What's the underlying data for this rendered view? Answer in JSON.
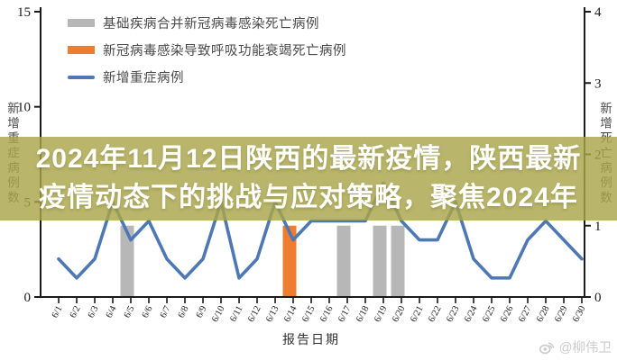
{
  "overlay": {
    "line1": "2024年11月12日陕西的最新疫情，陕西最新",
    "line2": "疫情动态下的挑战与应对策略，聚焦2024年",
    "background_color": "#aaa64c",
    "text_color": "#ffffff"
  },
  "watermark": {
    "icon": "weibo-eye-icon",
    "text": "@柳伟卫"
  },
  "chart_data": {
    "type": "combo",
    "x": [
      "6/1",
      "6/2",
      "6/3",
      "6/4",
      "6/5",
      "6/6",
      "6/7",
      "6/8",
      "6/9",
      "6/10",
      "6/11",
      "6/12",
      "6/13",
      "6/14",
      "6/15",
      "6/16",
      "6/17",
      "6/18",
      "6/19",
      "6/20",
      "6/21",
      "6/22",
      "6/23",
      "6/24",
      "6/25",
      "6/26",
      "6/27",
      "6/28",
      "6/29",
      "6/30"
    ],
    "xlabel": "报告日期",
    "left_axis": {
      "label": "新增重症病例数",
      "min": 0,
      "max": 15,
      "ticks": [
        0,
        5,
        10,
        15
      ]
    },
    "right_axis": {
      "label": "新增死亡病例数",
      "min": 0,
      "max": 4,
      "ticks": [
        0,
        1,
        2,
        3,
        4
      ]
    },
    "grid": false,
    "legend_position": "top-left",
    "series": [
      {
        "name": "基础疾病合并新冠病毒感染死亡病例",
        "type": "bar",
        "axis": "right",
        "color": "#b7b7b7",
        "values": [
          0,
          0,
          0,
          0,
          1,
          0,
          0,
          0,
          0,
          0,
          0,
          0,
          0,
          0,
          0,
          0,
          1,
          0,
          1,
          1,
          0,
          0,
          0,
          0,
          0,
          0,
          0,
          0,
          0,
          0
        ]
      },
      {
        "name": "新冠病毒感染导致呼吸功能衰竭死亡病例",
        "type": "bar",
        "axis": "right",
        "color": "#ed7d31",
        "values": [
          0,
          0,
          0,
          0,
          0,
          0,
          0,
          0,
          0,
          0,
          0,
          0,
          0,
          1,
          0,
          0,
          0,
          0,
          0,
          0,
          0,
          0,
          0,
          0,
          0,
          0,
          0,
          0,
          0,
          0
        ]
      },
      {
        "name": "新增重症病例",
        "type": "line",
        "axis": "left",
        "color": "#4d78b4",
        "values": [
          2,
          1,
          2,
          5,
          3,
          4,
          2,
          1,
          2,
          5,
          1,
          2,
          5,
          3,
          4,
          4,
          4,
          4,
          6,
          4,
          3,
          3,
          5,
          2,
          1,
          1,
          3,
          4,
          3,
          2
        ]
      }
    ]
  }
}
